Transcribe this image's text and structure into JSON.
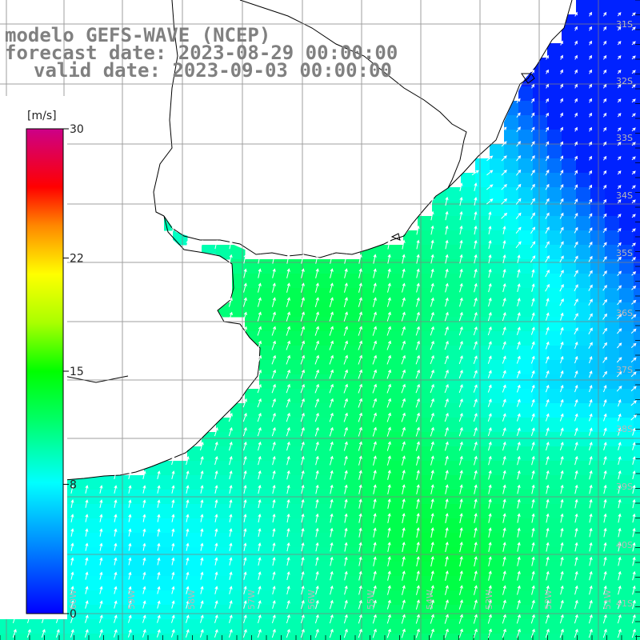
{
  "title": {
    "line1": "modelo GEFS-WAVE (NCEP)",
    "line2": "forecast date: 2023-08-29 00:00:00",
    "line3": "valid date: 2023-09-03 00:00:00"
  },
  "colorbar": {
    "units": "[m/s]",
    "ticks": [
      {
        "value": 30,
        "label": "30"
      },
      {
        "value": 22,
        "label": "22"
      },
      {
        "value": 15,
        "label": "15"
      },
      {
        "value": 8,
        "label": "8"
      },
      {
        "value": 0,
        "label": "0"
      }
    ],
    "range": [
      0,
      30
    ],
    "colors": [
      "#0000ff",
      "#00aaff",
      "#00ffff",
      "#00ff00",
      "#66ff00",
      "#ffff00",
      "#ff8800",
      "#ff0000",
      "#ff0066",
      "#cc0088"
    ]
  },
  "latitude_labels": [
    "31S",
    "32S",
    "33S",
    "34S",
    "35S",
    "36S",
    "37S",
    "38S",
    "39S",
    "40S",
    "41S"
  ],
  "longitude_labels": [
    "60W",
    "59W",
    "58W",
    "57W",
    "56W",
    "55W",
    "54W",
    "53W",
    "52W",
    "51W"
  ],
  "map_data": {
    "variable": "wind speed",
    "units": "m/s",
    "land_color": "#ffffff",
    "grid_color": "#7f7f7f",
    "arrow_color": "#ffffff"
  }
}
